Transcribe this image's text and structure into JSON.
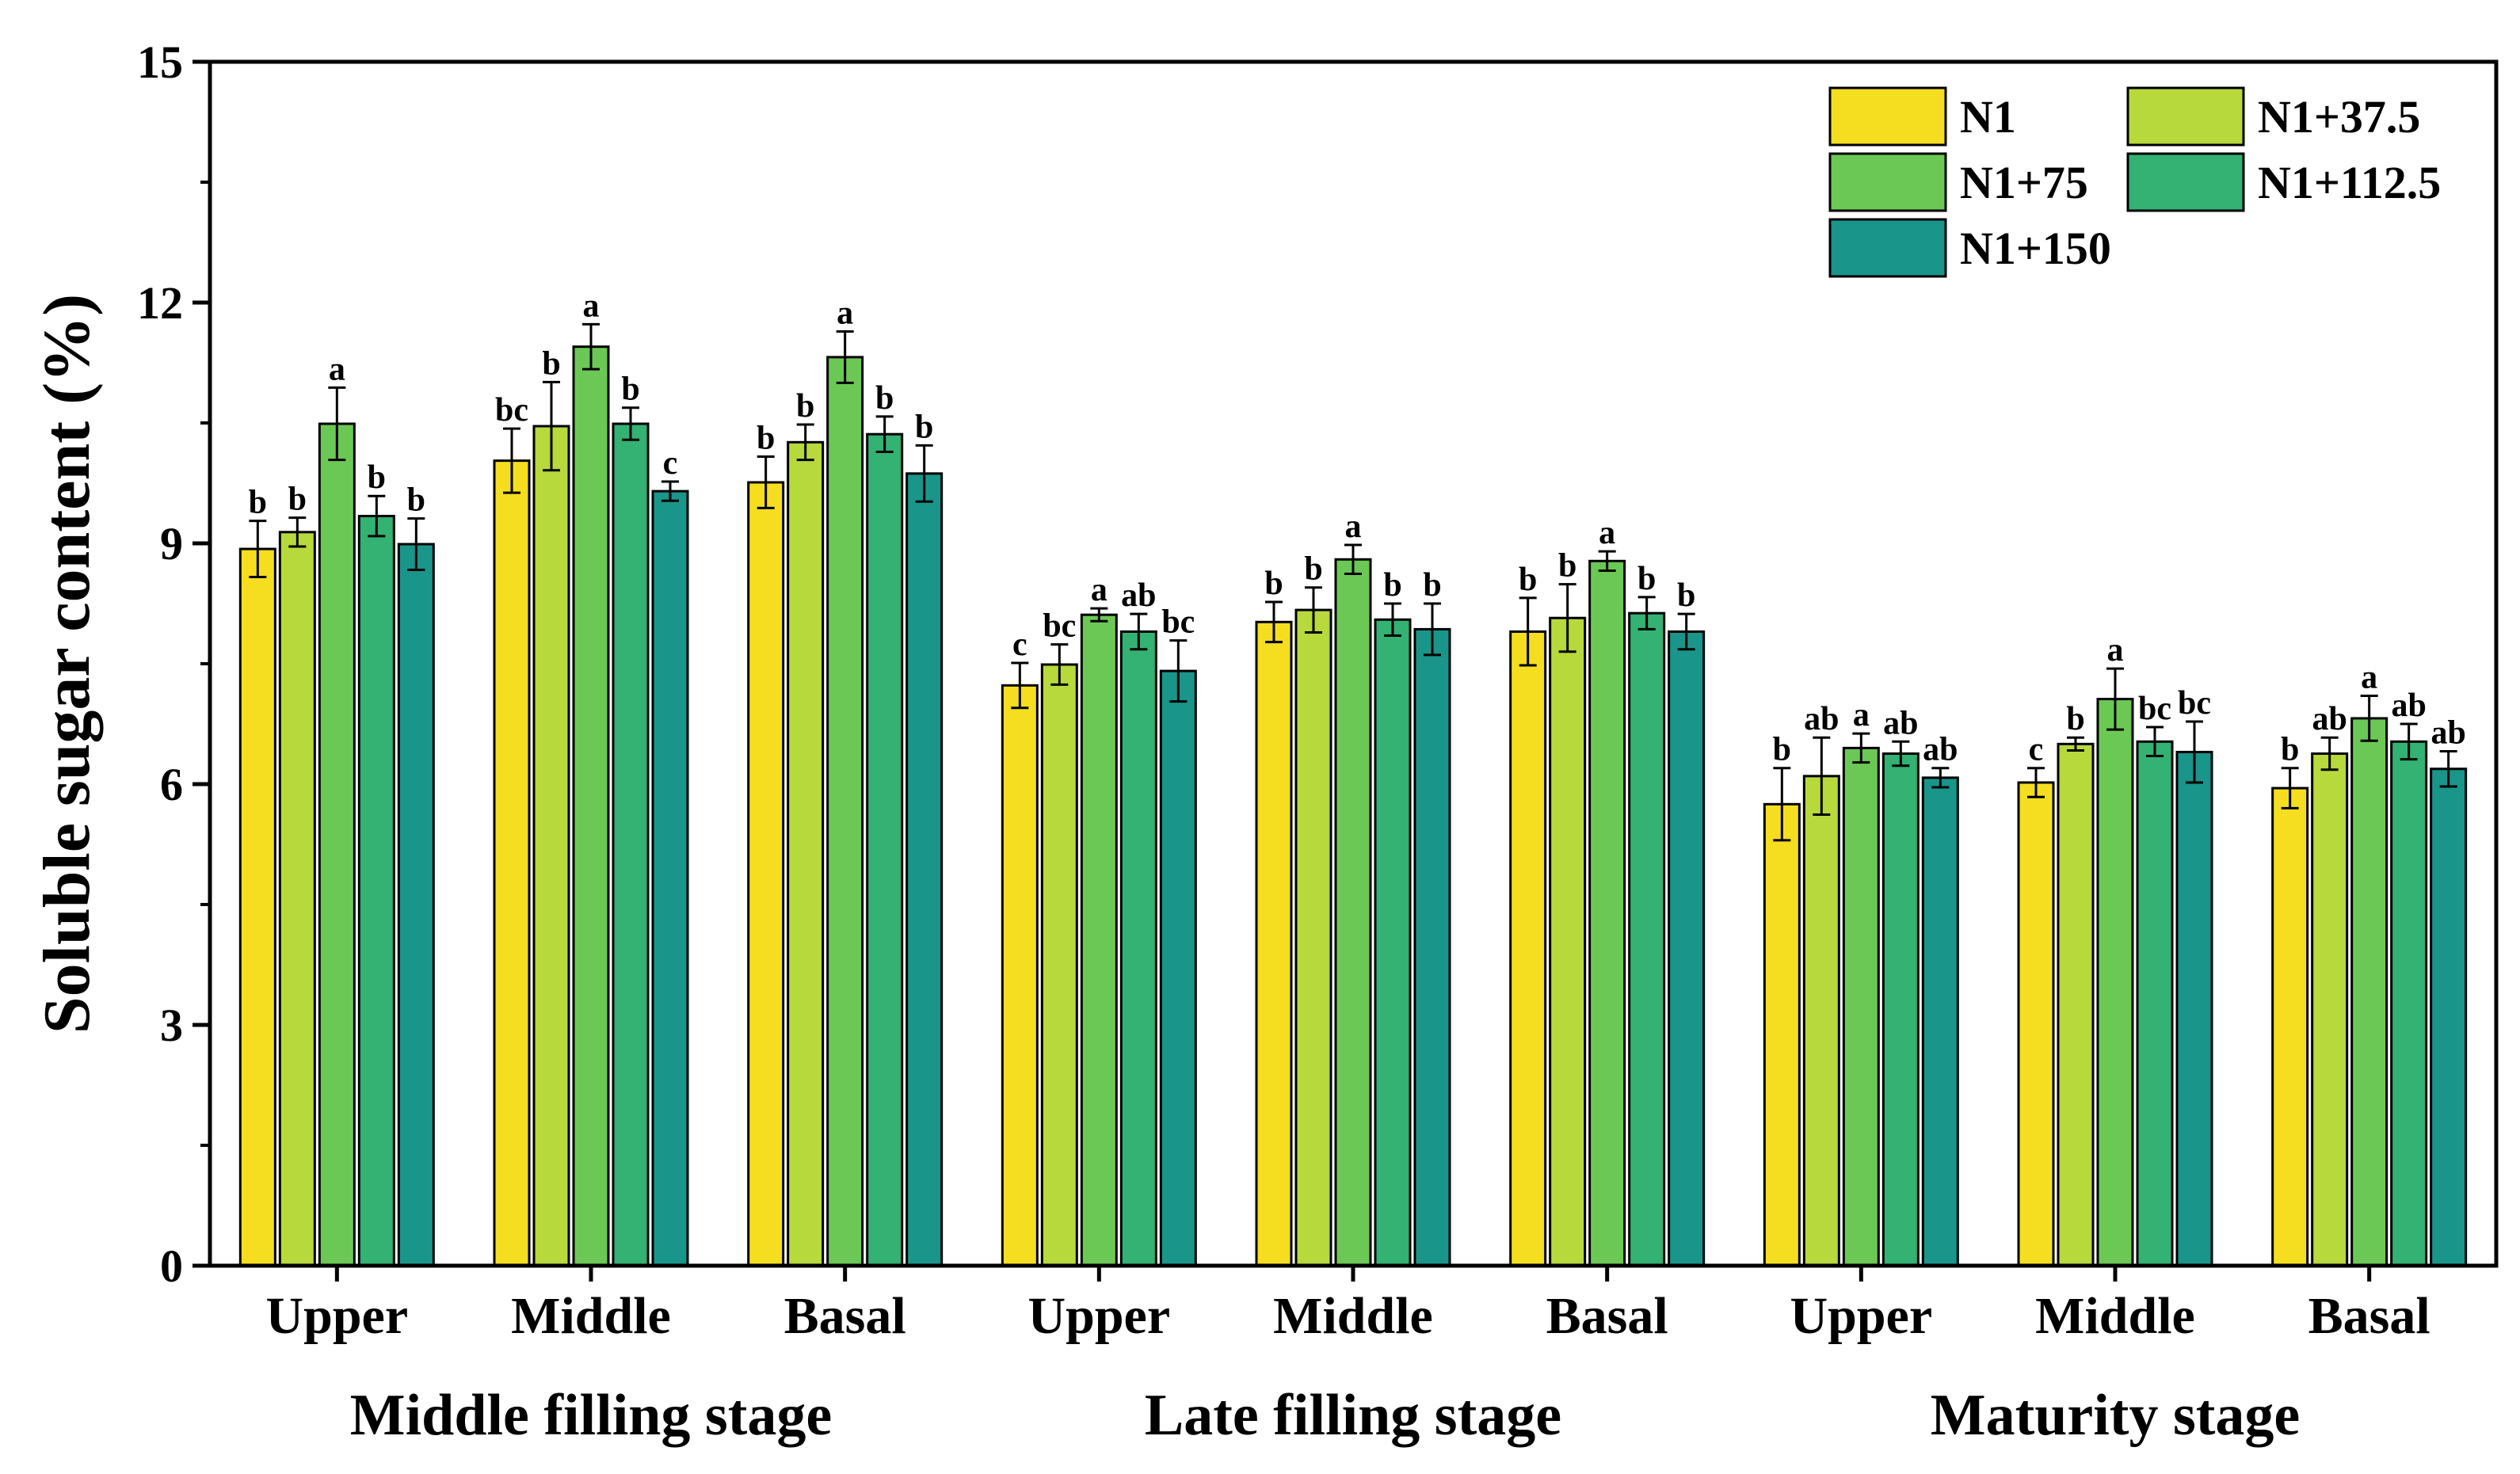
{
  "chart_data": {
    "type": "bar",
    "ylabel": "Soluble sugar content (%)",
    "xlabel": "",
    "ylim": [
      0,
      15
    ],
    "yticks": [
      0,
      3,
      6,
      9,
      12,
      15
    ],
    "grid": false,
    "legend_position": "top-right",
    "groups": [
      {
        "stage": "Middle filling stage",
        "positions": [
          "Upper",
          "Middle",
          "Basal"
        ]
      },
      {
        "stage": "Late filling stage",
        "positions": [
          "Upper",
          "Middle",
          "Basal"
        ]
      },
      {
        "stage": "Maturity stage",
        "positions": [
          "Upper",
          "Middle",
          "Basal"
        ]
      }
    ],
    "series": [
      {
        "name": "N1",
        "color": "#F5DE1F",
        "values": [
          8.93,
          10.03,
          9.76,
          7.23,
          8.02,
          7.9,
          5.75,
          6.02,
          5.95
        ],
        "errors": [
          0.35,
          0.4,
          0.32,
          0.28,
          0.25,
          0.42,
          0.45,
          0.18,
          0.25
        ],
        "letters": [
          "b",
          "bc",
          "b",
          "c",
          "b",
          "b",
          "b",
          "c",
          "b"
        ]
      },
      {
        "name": "N1+37.5",
        "color": "#B7D93C",
        "values": [
          9.14,
          10.46,
          10.26,
          7.49,
          8.17,
          8.07,
          6.1,
          6.5,
          6.38
        ],
        "errors": [
          0.18,
          0.55,
          0.22,
          0.25,
          0.28,
          0.42,
          0.48,
          0.08,
          0.2
        ],
        "letters": [
          "b",
          "b",
          "b",
          "bc",
          "b",
          "b",
          "ab",
          "b",
          "ab"
        ]
      },
      {
        "name": "N1+75",
        "color": "#6CC855",
        "values": [
          10.49,
          11.45,
          11.32,
          8.11,
          8.8,
          8.78,
          6.45,
          7.06,
          6.82
        ],
        "errors": [
          0.45,
          0.28,
          0.32,
          0.08,
          0.18,
          0.12,
          0.18,
          0.38,
          0.28
        ],
        "letters": [
          "a",
          "a",
          "a",
          "a",
          "a",
          "a",
          "a",
          "a",
          "a"
        ]
      },
      {
        "name": "N1+112.5",
        "color": "#33B273",
        "values": [
          9.34,
          10.49,
          10.36,
          7.9,
          8.05,
          8.13,
          6.38,
          6.53,
          6.53
        ],
        "errors": [
          0.25,
          0.2,
          0.22,
          0.22,
          0.2,
          0.2,
          0.15,
          0.18,
          0.22
        ],
        "letters": [
          "b",
          "b",
          "b",
          "ab",
          "b",
          "b",
          "ab",
          "bc",
          "ab"
        ]
      },
      {
        "name": "N1+150",
        "color": "#1A958A",
        "values": [
          8.99,
          9.65,
          9.87,
          7.41,
          7.93,
          7.9,
          6.08,
          6.4,
          6.19
        ],
        "errors": [
          0.32,
          0.12,
          0.35,
          0.38,
          0.32,
          0.22,
          0.12,
          0.38,
          0.22
        ],
        "letters": [
          "b",
          "c",
          "b",
          "bc",
          "b",
          "b",
          "ab",
          "bc",
          "ab"
        ]
      }
    ]
  }
}
